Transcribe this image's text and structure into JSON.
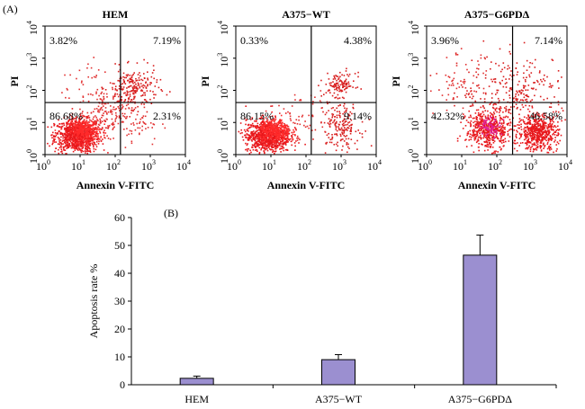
{
  "panel_a_label": "(A)",
  "panel_b_label": "(B)",
  "chart_data": [
    {
      "type": "scatter",
      "subtype": "flow-cytometry-quadrant",
      "title": "HEM",
      "xlabel": "Annexin V-FITC",
      "ylabel": "PI",
      "x_ticks": [
        "10",
        "10",
        "10",
        "10",
        "10"
      ],
      "x_tick_exps": [
        "0",
        "1",
        "2",
        "3",
        "4"
      ],
      "y_ticks": [
        "10",
        "10",
        "10",
        "10",
        "10"
      ],
      "y_tick_exps": [
        "0",
        "1",
        "2",
        "3",
        "4"
      ],
      "xlim_log10": [
        0,
        4
      ],
      "ylim_log10": [
        0,
        4
      ],
      "gate_x_log10": 2.15,
      "gate_y_log10": 1.62,
      "quadrants": {
        "upper_left": "3.82%",
        "upper_right": "7.19%",
        "lower_left": "86.68%",
        "lower_right": "2.31%"
      },
      "clusters": [
        {
          "cx": 0.9,
          "cy": 0.6,
          "sx": 0.32,
          "sy": 0.26,
          "n": 900,
          "color": "#e8181c"
        },
        {
          "cx": 1.1,
          "cy": 0.75,
          "sx": 0.22,
          "sy": 0.18,
          "n": 300,
          "color": "#ff2b2b"
        },
        {
          "cx": 2.5,
          "cy": 2.1,
          "sx": 0.35,
          "sy": 0.3,
          "n": 220,
          "color": "#d81e1e"
        },
        {
          "cx": 1.7,
          "cy": 1.3,
          "sx": 0.4,
          "sy": 0.3,
          "n": 160,
          "color": "#e23030"
        },
        {
          "cx": 2.5,
          "cy": 1.0,
          "sx": 0.4,
          "sy": 0.35,
          "n": 60,
          "color": "#e23030"
        },
        {
          "cx": 1.2,
          "cy": 2.2,
          "sx": 0.4,
          "sy": 0.4,
          "n": 40,
          "color": "#e23030"
        }
      ]
    },
    {
      "type": "scatter",
      "subtype": "flow-cytometry-quadrant",
      "title": "A375−WT",
      "xlabel": "Annexin V-FITC",
      "ylabel": "PI",
      "x_ticks": [
        "10",
        "10",
        "10",
        "10",
        "10"
      ],
      "x_tick_exps": [
        "0",
        "1",
        "2",
        "3",
        "4"
      ],
      "y_ticks": [
        "10",
        "10",
        "10",
        "10",
        "10"
      ],
      "y_tick_exps": [
        "0",
        "1",
        "2",
        "3",
        "4"
      ],
      "xlim_log10": [
        0,
        4
      ],
      "ylim_log10": [
        0,
        4
      ],
      "gate_x_log10": 2.15,
      "gate_y_log10": 1.62,
      "quadrants": {
        "upper_left": "0.33%",
        "upper_right": "4.38%",
        "lower_left": "86.15%",
        "lower_right": "9.14%"
      },
      "clusters": [
        {
          "cx": 0.9,
          "cy": 0.6,
          "sx": 0.32,
          "sy": 0.26,
          "n": 900,
          "color": "#e8181c"
        },
        {
          "cx": 1.1,
          "cy": 0.75,
          "sx": 0.22,
          "sy": 0.18,
          "n": 300,
          "color": "#ff2b2b"
        },
        {
          "cx": 2.95,
          "cy": 0.9,
          "sx": 0.28,
          "sy": 0.35,
          "n": 180,
          "color": "#d81e1e"
        },
        {
          "cx": 2.95,
          "cy": 2.2,
          "sx": 0.22,
          "sy": 0.18,
          "n": 120,
          "color": "#d81e1e"
        },
        {
          "cx": 2.0,
          "cy": 1.2,
          "sx": 0.5,
          "sy": 0.4,
          "n": 60,
          "color": "#e23030"
        }
      ]
    },
    {
      "type": "scatter",
      "subtype": "flow-cytometry-quadrant",
      "title": "A375−G6PDΔ",
      "xlabel": "Annexin V-FITC",
      "ylabel": "PI",
      "x_ticks": [
        "10",
        "10",
        "10",
        "10",
        "10"
      ],
      "x_tick_exps": [
        "0",
        "1",
        "2",
        "3",
        "4"
      ],
      "y_ticks": [
        "10",
        "10",
        "10",
        "10",
        "10"
      ],
      "y_tick_exps": [
        "0",
        "1",
        "2",
        "3",
        "4"
      ],
      "xlim_log10": [
        0,
        4
      ],
      "ylim_log10": [
        0,
        4
      ],
      "gate_x_log10": 2.45,
      "gate_y_log10": 1.62,
      "quadrants": {
        "upper_left": "3.96%",
        "upper_right": "7.14%",
        "lower_left": "42.32%",
        "lower_right": "46.58%"
      },
      "clusters": [
        {
          "cx": 1.75,
          "cy": 0.8,
          "sx": 0.32,
          "sy": 0.3,
          "n": 520,
          "color": "#e8181c"
        },
        {
          "cx": 1.8,
          "cy": 0.9,
          "sx": 0.15,
          "sy": 0.15,
          "n": 70,
          "color": "#e020a0"
        },
        {
          "cx": 3.15,
          "cy": 0.7,
          "sx": 0.28,
          "sy": 0.28,
          "n": 560,
          "color": "#e8181c"
        },
        {
          "cx": 2.5,
          "cy": 2.0,
          "sx": 0.8,
          "sy": 0.55,
          "n": 280,
          "color": "#d81e1e"
        },
        {
          "cx": 1.0,
          "cy": 2.2,
          "sx": 0.4,
          "sy": 0.45,
          "n": 60,
          "color": "#e23030"
        }
      ]
    },
    {
      "type": "bar",
      "categories": [
        "HEM",
        "A375−WT",
        "A375−G6PDΔ"
      ],
      "values": [
        2.3,
        9.0,
        46.5
      ],
      "errors": [
        0.8,
        1.8,
        7.2
      ],
      "ylabel": "Apoptosis rate %",
      "ylim": [
        0,
        60
      ],
      "y_ticks": [
        "0",
        "10",
        "20",
        "30",
        "40",
        "50",
        "60"
      ],
      "bar_color": "#9b8fd0"
    }
  ]
}
